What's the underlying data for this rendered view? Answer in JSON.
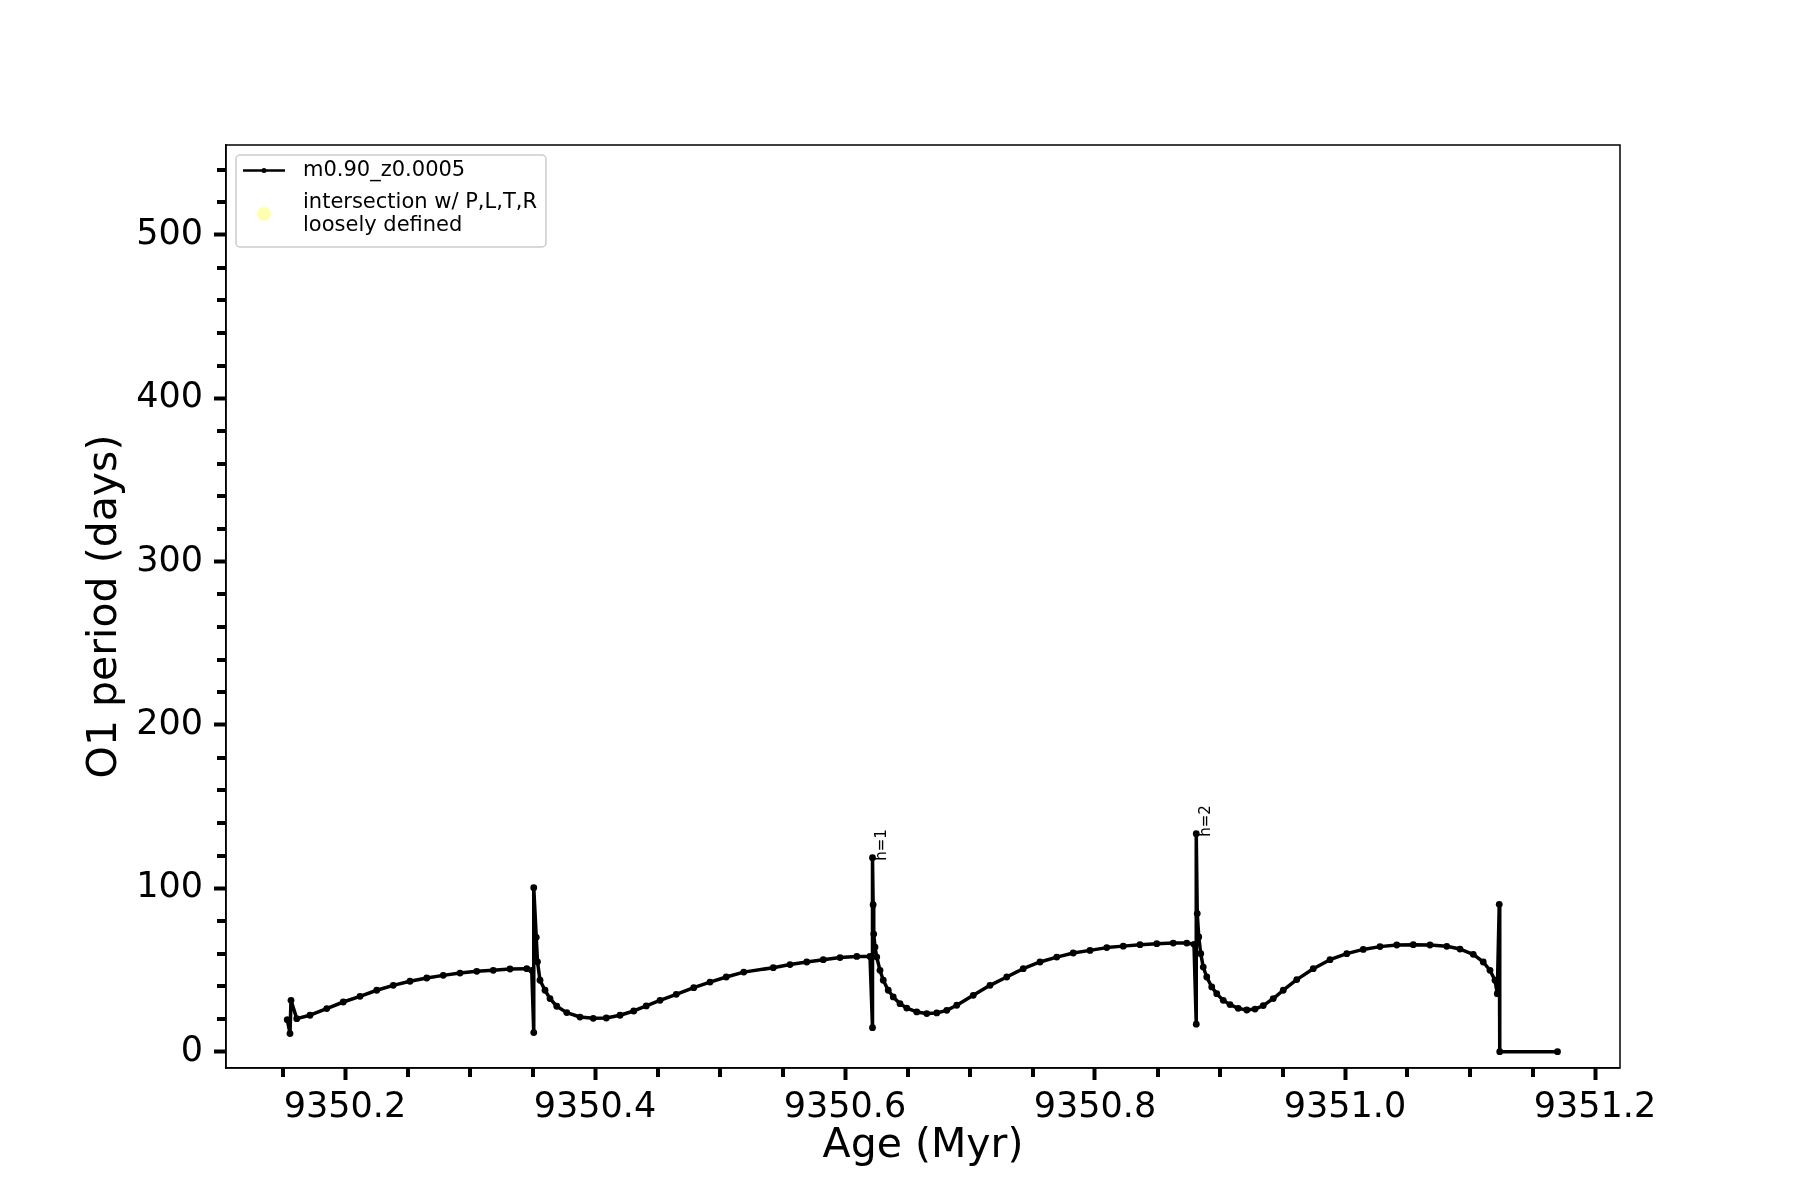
{
  "chart_data": {
    "type": "line",
    "xlabel": "Age (Myr)",
    "ylabel": "O1 period (days)",
    "xlim": [
      9350.1048,
      9351.22
    ],
    "ylim": [
      -10,
      555
    ],
    "xticks": [
      {
        "value": 9350.15,
        "label": null
      },
      9350.2,
      {
        "value": 9350.25,
        "label": null
      },
      {
        "value": 9350.3,
        "label": null
      },
      {
        "value": 9350.35,
        "label": null
      },
      9350.4,
      {
        "value": 9350.45,
        "label": null
      },
      {
        "value": 9350.5,
        "label": null
      },
      {
        "value": 9350.55,
        "label": null
      },
      9350.6,
      {
        "value": 9350.65,
        "label": null
      },
      {
        "value": 9350.7,
        "label": null
      },
      {
        "value": 9350.75,
        "label": null
      },
      9350.8,
      {
        "value": 9350.85,
        "label": null
      },
      {
        "value": 9350.9,
        "label": null
      },
      {
        "value": 9350.95,
        "label": null
      },
      {
        "value": 9351.0,
        "label": "9351.0"
      },
      {
        "value": 9351.05,
        "label": null
      },
      {
        "value": 9351.1,
        "label": null
      },
      {
        "value": 9351.15,
        "label": null
      },
      9351.2
    ],
    "yticks": [
      0,
      {
        "value": 20,
        "label": null
      },
      {
        "value": 40,
        "label": null
      },
      {
        "value": 60,
        "label": null
      },
      {
        "value": 80,
        "label": null
      },
      100,
      {
        "value": 120,
        "label": null
      },
      {
        "value": 140,
        "label": null
      },
      {
        "value": 160,
        "label": null
      },
      {
        "value": 180,
        "label": null
      },
      200,
      {
        "value": 220,
        "label": null
      },
      {
        "value": 240,
        "label": null
      },
      {
        "value": 260,
        "label": null
      },
      {
        "value": 280,
        "label": null
      },
      300,
      {
        "value": 320,
        "label": null
      },
      {
        "value": 340,
        "label": null
      },
      {
        "value": 360,
        "label": null
      },
      {
        "value": 380,
        "label": null
      },
      400,
      {
        "value": 420,
        "label": null
      },
      {
        "value": 440,
        "label": null
      },
      {
        "value": 460,
        "label": null
      },
      {
        "value": 480,
        "label": null
      },
      500,
      {
        "value": 520,
        "label": null
      },
      {
        "value": 540,
        "label": null
      }
    ],
    "grid": false,
    "legend": "top left",
    "marker": "circle",
    "annotations": [
      {
        "text": "h=1",
        "x": 9350.622,
        "y": 118.7
      },
      {
        "text": "h=2",
        "x": 9350.881,
        "y": 133.4
      }
    ],
    "series": [
      {
        "name": "m0.90_z0.0005",
        "color": "#000000",
        "x": [
          9350.1538,
          9350.156,
          9350.1568,
          9350.1614,
          9350.172,
          9350.1854,
          9350.1986,
          9350.212,
          9350.2254,
          9350.2386,
          9350.252,
          9350.2654,
          9350.2786,
          9350.292,
          9350.3054,
          9350.3186,
          9350.332,
          9350.3454,
          9350.3494,
          9350.351,
          9350.351,
          9350.353,
          9350.354,
          9350.356,
          9350.36,
          9350.364,
          9350.3694,
          9350.3774,
          9350.388,
          9350.3986,
          9350.409,
          9350.42,
          9350.431,
          9350.441,
          9350.452,
          9350.465,
          9350.479,
          9350.492,
          9350.505,
          9350.519,
          9350.5426,
          9350.556,
          9350.5694,
          9350.5826,
          9350.596,
          9350.6094,
          9350.62,
          9350.622,
          9350.622,
          9350.6225,
          9350.623,
          9350.624,
          9350.6254,
          9350.628,
          9350.6306,
          9350.6346,
          9350.6386,
          9350.644,
          9350.6494,
          9350.6574,
          9350.6654,
          9350.6734,
          9350.6814,
          9350.6894,
          9350.7026,
          9350.716,
          9350.7294,
          9350.7426,
          9350.756,
          9350.7694,
          9350.7826,
          9350.796,
          9350.8094,
          9350.8226,
          9350.836,
          9350.8494,
          9350.8626,
          9350.8734,
          9350.8792,
          9350.881,
          9350.881,
          9350.8818,
          9350.883,
          9350.8846,
          9350.8866,
          9350.8894,
          9350.8934,
          9350.8974,
          9350.9026,
          9350.908,
          9350.9146,
          9350.9214,
          9350.928,
          9350.9346,
          9350.9426,
          9350.9506,
          9350.9614,
          9350.9746,
          9350.988,
          9351.0014,
          9351.0146,
          9351.028,
          9351.0414,
          9351.0546,
          9351.068,
          9351.0814,
          9351.092,
          9351.1026,
          9351.1106,
          9351.116,
          9351.12,
          9351.1218,
          9351.1234,
          9351.1238,
          9351.17
        ],
        "values": [
          19.6,
          11.1,
          31.4,
          20.2,
          22.3,
          26.4,
          30.4,
          33.9,
          37.6,
          40.6,
          43.1,
          45.1,
          46.7,
          48.1,
          49.2,
          49.8,
          50.6,
          50.8,
          49.8,
          11.7,
          100.4,
          70,
          55,
          43.7,
          37.6,
          32.5,
          27.8,
          23.9,
          21.2,
          20.4,
          20.6,
          22.3,
          24.9,
          28,
          31.4,
          35.1,
          39.2,
          42.6,
          45.7,
          48.7,
          51.4,
          53.3,
          54.9,
          56.3,
          57.6,
          58.3,
          58.3,
          14.7,
          118.7,
          90,
          72,
          64,
          57.9,
          49.8,
          43.7,
          37.6,
          33.5,
          29.4,
          26.7,
          24.3,
          23.3,
          23.7,
          25.3,
          28.4,
          34.5,
          40.6,
          45.7,
          50.8,
          54.9,
          57.9,
          60.4,
          62,
          63.7,
          64.6,
          65.5,
          66.1,
          66.5,
          66.5,
          65.7,
          16.8,
          133.4,
          84.5,
          70.2,
          60,
          51.8,
          45.7,
          39.6,
          35.5,
          31.4,
          28.8,
          26.5,
          25.5,
          26.1,
          28.2,
          32.5,
          37.6,
          44.1,
          50.8,
          56.3,
          60,
          62.6,
          64.3,
          65.3,
          65.5,
          65.3,
          64.5,
          62.8,
          59.6,
          54.9,
          49.8,
          43.7,
          35.5,
          90.2,
          0,
          0
        ]
      },
      {
        "name": "intersection w/ P,L,T,R\nloosely defined",
        "type": "scatter",
        "color": "#ffffb2"
      }
    ]
  }
}
